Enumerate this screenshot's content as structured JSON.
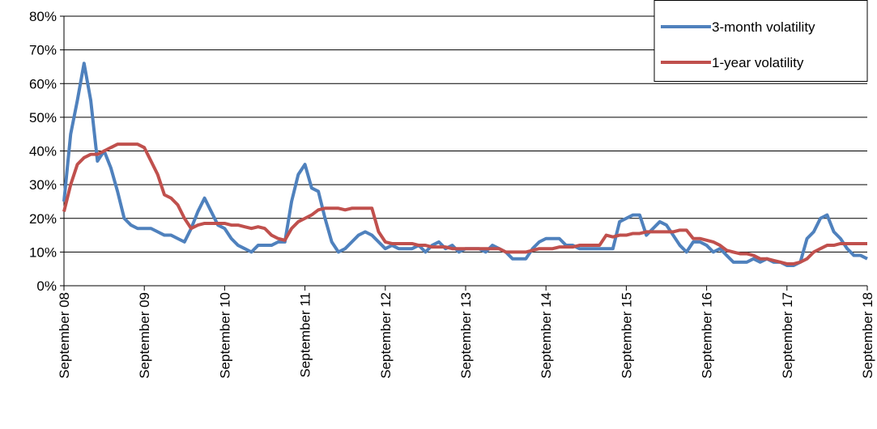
{
  "chart_data": {
    "type": "line",
    "x": [
      "2008-09",
      "2008-10",
      "2008-11",
      "2008-12",
      "2009-01",
      "2009-02",
      "2009-03",
      "2009-04",
      "2009-05",
      "2009-06",
      "2009-07",
      "2009-08",
      "2009-09",
      "2009-10",
      "2009-11",
      "2009-12",
      "2010-01",
      "2010-02",
      "2010-03",
      "2010-04",
      "2010-05",
      "2010-06",
      "2010-07",
      "2010-08",
      "2010-09",
      "2010-10",
      "2010-11",
      "2010-12",
      "2011-01",
      "2011-02",
      "2011-03",
      "2011-04",
      "2011-05",
      "2011-06",
      "2011-07",
      "2011-08",
      "2011-09",
      "2011-10",
      "2011-11",
      "2011-12",
      "2012-01",
      "2012-02",
      "2012-03",
      "2012-04",
      "2012-05",
      "2012-06",
      "2012-07",
      "2012-08",
      "2012-09",
      "2012-10",
      "2012-11",
      "2012-12",
      "2013-01",
      "2013-02",
      "2013-03",
      "2013-04",
      "2013-05",
      "2013-06",
      "2013-07",
      "2013-08",
      "2013-09",
      "2013-10",
      "2013-11",
      "2013-12",
      "2014-01",
      "2014-02",
      "2014-03",
      "2014-04",
      "2014-05",
      "2014-06",
      "2014-07",
      "2014-08",
      "2014-09",
      "2014-10",
      "2014-11",
      "2014-12",
      "2015-01",
      "2015-02",
      "2015-03",
      "2015-04",
      "2015-05",
      "2015-06",
      "2015-07",
      "2015-08",
      "2015-09",
      "2015-10",
      "2015-11",
      "2015-12",
      "2016-01",
      "2016-02",
      "2016-03",
      "2016-04",
      "2016-05",
      "2016-06",
      "2016-07",
      "2016-08",
      "2016-09",
      "2016-10",
      "2016-11",
      "2016-12",
      "2017-01",
      "2017-02",
      "2017-03",
      "2017-04",
      "2017-05",
      "2017-06",
      "2017-07",
      "2017-08",
      "2017-09",
      "2017-10",
      "2017-11",
      "2017-12",
      "2018-01",
      "2018-02",
      "2018-03",
      "2018-04",
      "2018-05",
      "2018-06",
      "2018-07",
      "2018-08",
      "2018-09"
    ],
    "series": [
      {
        "name": "3-month volatility",
        "color": "#4f81bd",
        "values": [
          25,
          45,
          55,
          66,
          55,
          37,
          40,
          35,
          28,
          20,
          18,
          17,
          17,
          17,
          16,
          15,
          15,
          14,
          13,
          17,
          22,
          26,
          22,
          18,
          17,
          14,
          12,
          11,
          10,
          12,
          12,
          12,
          13,
          13,
          25,
          33,
          36,
          29,
          28,
          20,
          13,
          10,
          11,
          13,
          15,
          16,
          15,
          13,
          11,
          12,
          11,
          11,
          11,
          12,
          10,
          12,
          13,
          11,
          12,
          10,
          11,
          11,
          11,
          10,
          12,
          11,
          10,
          8,
          8,
          8,
          11,
          13,
          14,
          14,
          14,
          12,
          12,
          11,
          11,
          11,
          11,
          11,
          11,
          19,
          20,
          21,
          21,
          15,
          17,
          19,
          18,
          15,
          12,
          10,
          13,
          13,
          12,
          10,
          11,
          9,
          7,
          7,
          7,
          8,
          7,
          8,
          7,
          7,
          6,
          6,
          7,
          14,
          16,
          20,
          21,
          16,
          14,
          11,
          9,
          9,
          8
        ]
      },
      {
        "name": "1-year volatility",
        "color": "#c0504d",
        "values": [
          22,
          30,
          36,
          38,
          39,
          39,
          40,
          41,
          42,
          42,
          42,
          42,
          41,
          37,
          33,
          27,
          26,
          24,
          20,
          17,
          18,
          18.5,
          18.5,
          18.5,
          18.5,
          18,
          18,
          17.5,
          17,
          17.5,
          17,
          15,
          14,
          13.5,
          17,
          19,
          20,
          21,
          22.5,
          23,
          23,
          23,
          22.5,
          23,
          23,
          23,
          23,
          16,
          13,
          12.5,
          12.5,
          12.5,
          12.5,
          12,
          12,
          11.5,
          11.5,
          11.5,
          11,
          11,
          11,
          11,
          11,
          11,
          11,
          11,
          10,
          10,
          10,
          10,
          10.5,
          11,
          11,
          11,
          11.5,
          11.5,
          11.5,
          12,
          12,
          12,
          12,
          15,
          14.5,
          15,
          15,
          15.5,
          15.5,
          16,
          16,
          16,
          16,
          16,
          16.5,
          16.5,
          14,
          14,
          13.5,
          13,
          12,
          10.5,
          10,
          9.5,
          9.5,
          9,
          8,
          8,
          7.5,
          7,
          6.5,
          6.5,
          7,
          8,
          10,
          11,
          12,
          12,
          12.5,
          12.5,
          12.5,
          12.5,
          12.5
        ]
      }
    ],
    "xlim": [
      "2008-09",
      "2018-09"
    ],
    "xticks": [
      {
        "value": "2008-09",
        "label": "September 08"
      },
      {
        "value": "2009-09",
        "label": "September 09"
      },
      {
        "value": "2010-09",
        "label": "September 10"
      },
      {
        "value": "2011-09",
        "label": "September 11"
      },
      {
        "value": "2012-09",
        "label": "September 12"
      },
      {
        "value": "2013-09",
        "label": "September 13"
      },
      {
        "value": "2014-09",
        "label": "September 14"
      },
      {
        "value": "2015-09",
        "label": "September 15"
      },
      {
        "value": "2016-09",
        "label": "September 16"
      },
      {
        "value": "2017-09",
        "label": "September 17"
      },
      {
        "value": "2018-09",
        "label": "September 18"
      }
    ],
    "ylim": [
      0,
      80
    ],
    "yticks": [
      {
        "value": 0,
        "label": "0%"
      },
      {
        "value": 10,
        "label": "10%"
      },
      {
        "value": 20,
        "label": "20%"
      },
      {
        "value": 30,
        "label": "30%"
      },
      {
        "value": 40,
        "label": "40%"
      },
      {
        "value": 50,
        "label": "50%"
      },
      {
        "value": 60,
        "label": "60%"
      },
      {
        "value": 70,
        "label": "70%"
      },
      {
        "value": 80,
        "label": "80%"
      }
    ],
    "grid": true,
    "legend": "top-right"
  }
}
